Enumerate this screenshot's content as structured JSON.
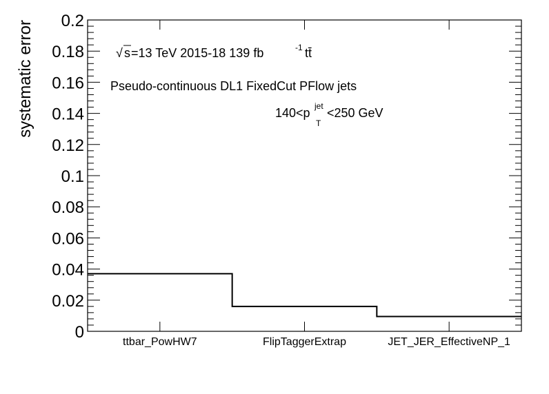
{
  "chart_data": {
    "type": "histogram-step",
    "ylabel": "systematic error",
    "ylim": [
      0,
      0.2
    ],
    "y_ticks": [
      "0",
      "0.02",
      "0.04",
      "0.06",
      "0.08",
      "0.1",
      "0.12",
      "0.14",
      "0.16",
      "0.18",
      "0.2"
    ],
    "categories": [
      "ttbar_PowHW7",
      "FlipTaggerExtrap",
      "JET_JER_EffectiveNP_1"
    ],
    "values": [
      0.037,
      0.016,
      0.0095
    ],
    "line_color": "#000000",
    "annotations": {
      "energy_text": "=13 TeV  2015-18  139 fb",
      "sqrt_s": "s",
      "lumi_sup": "-1",
      "process": "tt̄",
      "tagger": "Pseudo-continuous DL1 FixedCut PFlow jets",
      "pt_prefix": "140<p",
      "pt_sub": "T",
      "pt_sup": "jet",
      "pt_suffix": "<250 GeV"
    }
  }
}
